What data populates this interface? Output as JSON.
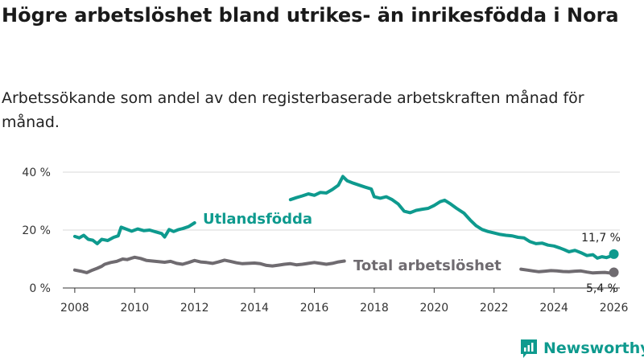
{
  "title": "Högre arbetslöshet bland utrikes- än inrikesfödda i Nora",
  "subtitle": "Arbetssökande som andel av den registerbaserade arbetskraften månad för månad.",
  "brand": {
    "name": "Newsworthy",
    "icon": "bar-chart-icon"
  },
  "colors": {
    "foreign": "#0e9a8e",
    "total": "#6f6b70",
    "grid": "#d9d9d9",
    "axis": "#333333"
  },
  "chart_data": {
    "type": "line",
    "title": "Högre arbetslöshet bland utrikes- än inrikesfödda i Nora",
    "xlabel": "",
    "ylabel": "",
    "xlim": [
      2007.6,
      2026.2
    ],
    "ylim": [
      0,
      40
    ],
    "x_ticks": [
      2008,
      2010,
      2012,
      2014,
      2016,
      2018,
      2020,
      2022,
      2024,
      2026
    ],
    "y_ticks": [
      0,
      20,
      40
    ],
    "y_tick_labels": [
      "0 %",
      "20 %",
      "40 %"
    ],
    "grid": "horizontal",
    "series": [
      {
        "name": "Utlandsfödda",
        "label": "Utlandsfödda",
        "end_label": "11,7 %",
        "gaps": [
          [
            2012.1,
            2015.1
          ]
        ],
        "points": [
          [
            2008.0,
            17.8
          ],
          [
            2008.15,
            17.3
          ],
          [
            2008.3,
            18.2
          ],
          [
            2008.45,
            16.8
          ],
          [
            2008.6,
            16.5
          ],
          [
            2008.75,
            15.3
          ],
          [
            2008.9,
            16.8
          ],
          [
            2009.1,
            16.4
          ],
          [
            2009.3,
            17.5
          ],
          [
            2009.45,
            18.0
          ],
          [
            2009.55,
            21.0
          ],
          [
            2009.75,
            20.2
          ],
          [
            2009.9,
            19.6
          ],
          [
            2010.1,
            20.4
          ],
          [
            2010.3,
            19.8
          ],
          [
            2010.5,
            20.0
          ],
          [
            2010.7,
            19.4
          ],
          [
            2010.9,
            18.8
          ],
          [
            2011.0,
            17.6
          ],
          [
            2011.15,
            20.2
          ],
          [
            2011.3,
            19.5
          ],
          [
            2011.45,
            20.1
          ],
          [
            2011.6,
            20.5
          ],
          [
            2011.8,
            21.2
          ],
          [
            2012.0,
            22.5
          ],
          [
            2015.2,
            30.5
          ],
          [
            2015.4,
            31.2
          ],
          [
            2015.6,
            31.8
          ],
          [
            2015.8,
            32.5
          ],
          [
            2016.0,
            32.0
          ],
          [
            2016.2,
            33.0
          ],
          [
            2016.4,
            32.8
          ],
          [
            2016.6,
            34.0
          ],
          [
            2016.8,
            35.5
          ],
          [
            2016.95,
            38.5
          ],
          [
            2017.1,
            37.0
          ],
          [
            2017.3,
            36.2
          ],
          [
            2017.5,
            35.5
          ],
          [
            2017.7,
            34.8
          ],
          [
            2017.9,
            34.2
          ],
          [
            2018.0,
            31.5
          ],
          [
            2018.2,
            31.0
          ],
          [
            2018.4,
            31.5
          ],
          [
            2018.6,
            30.5
          ],
          [
            2018.8,
            29.0
          ],
          [
            2019.0,
            26.5
          ],
          [
            2019.2,
            26.0
          ],
          [
            2019.4,
            26.8
          ],
          [
            2019.6,
            27.2
          ],
          [
            2019.8,
            27.5
          ],
          [
            2020.0,
            28.5
          ],
          [
            2020.2,
            29.8
          ],
          [
            2020.35,
            30.3
          ],
          [
            2020.55,
            29.0
          ],
          [
            2020.75,
            27.5
          ],
          [
            2021.0,
            25.8
          ],
          [
            2021.2,
            23.5
          ],
          [
            2021.4,
            21.5
          ],
          [
            2021.6,
            20.2
          ],
          [
            2021.8,
            19.5
          ],
          [
            2022.0,
            19.0
          ],
          [
            2022.2,
            18.5
          ],
          [
            2022.4,
            18.2
          ],
          [
            2022.6,
            18.0
          ],
          [
            2022.8,
            17.5
          ],
          [
            2023.0,
            17.3
          ],
          [
            2023.2,
            16.0
          ],
          [
            2023.4,
            15.3
          ],
          [
            2023.6,
            15.5
          ],
          [
            2023.8,
            14.8
          ],
          [
            2024.0,
            14.5
          ],
          [
            2024.2,
            13.8
          ],
          [
            2024.35,
            13.2
          ],
          [
            2024.5,
            12.5
          ],
          [
            2024.7,
            13.0
          ],
          [
            2024.9,
            12.2
          ],
          [
            2025.1,
            11.2
          ],
          [
            2025.3,
            11.5
          ],
          [
            2025.45,
            10.3
          ],
          [
            2025.6,
            10.8
          ],
          [
            2025.75,
            10.5
          ],
          [
            2025.9,
            11.0
          ],
          [
            2026.0,
            11.7
          ]
        ]
      },
      {
        "name": "Total arbetslöshet",
        "label": "Total arbetslöshet",
        "end_label": "5,4 %",
        "gaps": [
          [
            2017.1,
            2022.8
          ]
        ],
        "points": [
          [
            2008.0,
            6.2
          ],
          [
            2008.2,
            5.8
          ],
          [
            2008.4,
            5.3
          ],
          [
            2008.55,
            6.0
          ],
          [
            2008.75,
            6.8
          ],
          [
            2008.9,
            7.5
          ],
          [
            2009.0,
            8.2
          ],
          [
            2009.2,
            8.8
          ],
          [
            2009.4,
            9.2
          ],
          [
            2009.6,
            10.0
          ],
          [
            2009.75,
            9.8
          ],
          [
            2009.9,
            10.3
          ],
          [
            2010.0,
            10.6
          ],
          [
            2010.2,
            10.2
          ],
          [
            2010.4,
            9.5
          ],
          [
            2010.6,
            9.3
          ],
          [
            2010.8,
            9.1
          ],
          [
            2011.0,
            8.9
          ],
          [
            2011.2,
            9.2
          ],
          [
            2011.4,
            8.5
          ],
          [
            2011.6,
            8.2
          ],
          [
            2011.8,
            8.8
          ],
          [
            2012.0,
            9.5
          ],
          [
            2012.2,
            9.0
          ],
          [
            2012.4,
            8.8
          ],
          [
            2012.6,
            8.5
          ],
          [
            2012.8,
            9.0
          ],
          [
            2013.0,
            9.6
          ],
          [
            2013.2,
            9.2
          ],
          [
            2013.4,
            8.7
          ],
          [
            2013.6,
            8.4
          ],
          [
            2013.8,
            8.5
          ],
          [
            2014.0,
            8.6
          ],
          [
            2014.2,
            8.4
          ],
          [
            2014.4,
            7.8
          ],
          [
            2014.6,
            7.6
          ],
          [
            2014.8,
            7.9
          ],
          [
            2015.0,
            8.2
          ],
          [
            2015.2,
            8.4
          ],
          [
            2015.4,
            8.0
          ],
          [
            2015.6,
            8.2
          ],
          [
            2015.8,
            8.5
          ],
          [
            2016.0,
            8.8
          ],
          [
            2016.2,
            8.5
          ],
          [
            2016.4,
            8.2
          ],
          [
            2016.6,
            8.5
          ],
          [
            2016.8,
            9.0
          ],
          [
            2017.0,
            9.3
          ],
          [
            2022.9,
            6.5
          ],
          [
            2023.1,
            6.2
          ],
          [
            2023.3,
            5.9
          ],
          [
            2023.5,
            5.6
          ],
          [
            2023.7,
            5.8
          ],
          [
            2023.9,
            6.0
          ],
          [
            2024.1,
            5.9
          ],
          [
            2024.3,
            5.7
          ],
          [
            2024.5,
            5.6
          ],
          [
            2024.7,
            5.8
          ],
          [
            2024.9,
            5.9
          ],
          [
            2025.1,
            5.5
          ],
          [
            2025.3,
            5.2
          ],
          [
            2025.5,
            5.3
          ],
          [
            2025.7,
            5.4
          ],
          [
            2025.85,
            5.2
          ],
          [
            2026.0,
            5.4
          ]
        ]
      }
    ]
  }
}
